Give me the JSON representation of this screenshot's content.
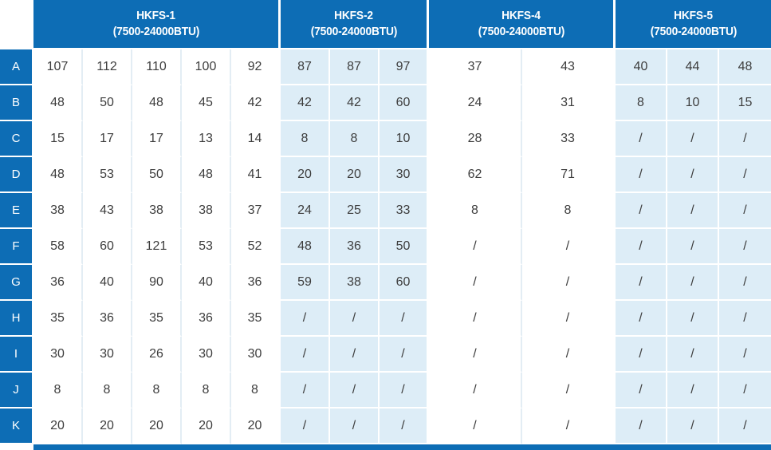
{
  "colors": {
    "header_blue": "#0d6db5",
    "light_blue_cell": "#ddedf7",
    "white_cell": "#ffffff",
    "separator_line": "#e3edf4",
    "cell_text": "#3d3d3d",
    "header_text": "#ffffff"
  },
  "chart_data": {
    "type": "table",
    "column_groups": [
      {
        "name": "HKFS-1",
        "subtitle": "(7500-24000BTU)",
        "cols": 5,
        "tint": "white"
      },
      {
        "name": "HKFS-2",
        "subtitle": "(7500-24000BTU)",
        "cols": 3,
        "tint": "blue"
      },
      {
        "name": "HKFS-4",
        "subtitle": "(7500-24000BTU)",
        "cols": 2,
        "tint": "white"
      },
      {
        "name": "HKFS-5",
        "subtitle": "(7500-24000BTU)",
        "cols": 3,
        "tint": "blue"
      }
    ],
    "row_labels": [
      "A",
      "B",
      "C",
      "D",
      "E",
      "F",
      "G",
      "H",
      "I",
      "J",
      "K"
    ],
    "rows": [
      {
        "label": "A",
        "values": [
          "107",
          "112",
          "110",
          "100",
          "92",
          "87",
          "87",
          "97",
          "37",
          "43",
          "40",
          "44",
          "48"
        ]
      },
      {
        "label": "B",
        "values": [
          "48",
          "50",
          "48",
          "45",
          "42",
          "42",
          "42",
          "60",
          "24",
          "31",
          "8",
          "10",
          "15"
        ]
      },
      {
        "label": "C",
        "values": [
          "15",
          "17",
          "17",
          "13",
          "14",
          "8",
          "8",
          "10",
          "28",
          "33",
          "/",
          "/",
          "/"
        ]
      },
      {
        "label": "D",
        "values": [
          "48",
          "53",
          "50",
          "48",
          "41",
          "20",
          "20",
          "30",
          "62",
          "71",
          "/",
          "/",
          "/"
        ]
      },
      {
        "label": "E",
        "values": [
          "38",
          "43",
          "38",
          "38",
          "37",
          "24",
          "25",
          "33",
          "8",
          "8",
          "/",
          "/",
          "/"
        ]
      },
      {
        "label": "F",
        "values": [
          "58",
          "60",
          "121",
          "53",
          "52",
          "48",
          "36",
          "50",
          "/",
          "/",
          "/",
          "/",
          "/"
        ]
      },
      {
        "label": "G",
        "values": [
          "36",
          "40",
          "90",
          "40",
          "36",
          "59",
          "38",
          "60",
          "/",
          "/",
          "/",
          "/",
          "/"
        ]
      },
      {
        "label": "H",
        "values": [
          "35",
          "36",
          "35",
          "36",
          "35",
          "/",
          "/",
          "/",
          "/",
          "/",
          "/",
          "/",
          "/"
        ]
      },
      {
        "label": "I",
        "values": [
          "30",
          "30",
          "26",
          "30",
          "30",
          "/",
          "/",
          "/",
          "/",
          "/",
          "/",
          "/",
          "/"
        ]
      },
      {
        "label": "J",
        "values": [
          "8",
          "8",
          "8",
          "8",
          "8",
          "/",
          "/",
          "/",
          "/",
          "/",
          "/",
          "/",
          "/"
        ]
      },
      {
        "label": "K",
        "values": [
          "20",
          "20",
          "20",
          "20",
          "20",
          "/",
          "/",
          "/",
          "/",
          "/",
          "/",
          "/",
          "/"
        ]
      }
    ]
  }
}
